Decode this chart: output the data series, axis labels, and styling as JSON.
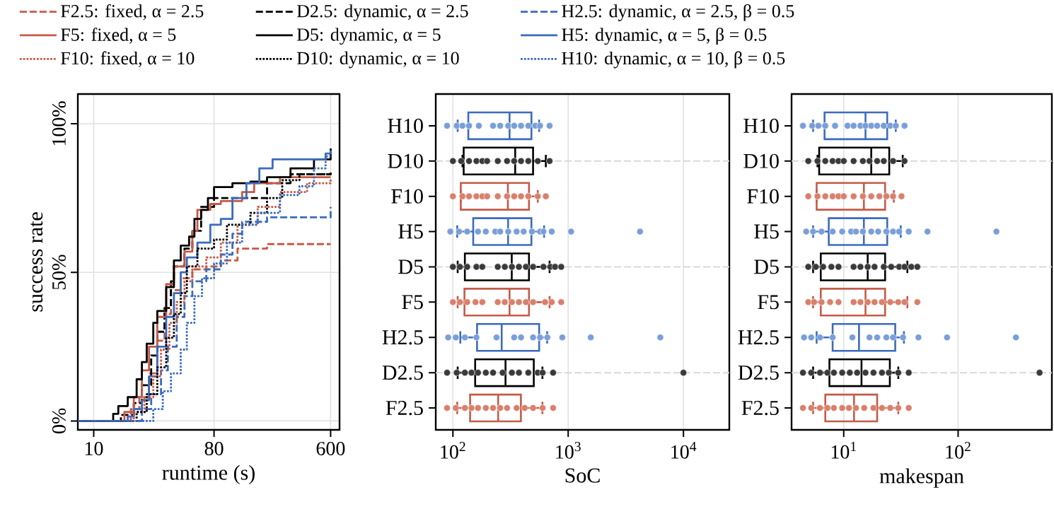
{
  "chart_data": [
    {
      "type": "step",
      "xlabel": "runtime (s)",
      "ylabel": "success rate",
      "log": "x",
      "xlim": [
        7.6,
        700
      ],
      "ylim": [
        -3,
        110
      ],
      "xticks": [
        10,
        80,
        600
      ],
      "yticks": [
        {
          "value": 0,
          "label": "0%"
        },
        {
          "value": 50,
          "label": "50%"
        },
        {
          "value": 100,
          "label": "100%"
        }
      ],
      "grid": true,
      "legend": "top",
      "series": [
        {
          "name": "F2.5: fixed, α = 2.5",
          "color": "#c55a47",
          "line_style": "dashed",
          "x": [
            7.6,
            17,
            19,
            22,
            26,
            30,
            34,
            38,
            45,
            55,
            70,
            90,
            120,
            200,
            600
          ],
          "values": [
            0,
            0,
            4,
            8,
            16,
            27,
            36,
            44,
            48,
            51,
            52,
            54,
            58,
            59.5,
            59.5
          ]
        },
        {
          "name": "D2.5: dynamic, α = 2.5",
          "color": "#000000",
          "line_style": "dashed",
          "x": [
            7.6,
            15,
            16,
            20,
            23,
            27,
            30,
            34,
            38,
            40,
            48,
            55,
            64,
            80,
            120,
            200,
            300,
            600
          ],
          "values": [
            0,
            0,
            2,
            6,
            12,
            22,
            30,
            38,
            47,
            52,
            58,
            64,
            72,
            75,
            75,
            80,
            83,
            83.5
          ]
        },
        {
          "name": "H2.5: dynamic, α = 2.5, β = 0.5",
          "color": "#3b6bbd",
          "line_style": "dashed",
          "x": [
            7.6,
            20,
            23,
            27,
            32,
            36,
            42,
            48,
            55,
            70,
            90,
            110,
            130,
            200,
            550,
            600
          ],
          "values": [
            0,
            0,
            4,
            9,
            17,
            25,
            35,
            42,
            47,
            51,
            56,
            63,
            67,
            68.5,
            68.5,
            72
          ]
        },
        {
          "name": "F5: fixed, α = 5",
          "color": "#c55a47",
          "line_style": "solid",
          "x": [
            7.6,
            15,
            17,
            20,
            23,
            26,
            30,
            35,
            40,
            48,
            55,
            60,
            75,
            90,
            130,
            160,
            250,
            600
          ],
          "values": [
            0,
            0,
            3,
            8,
            17,
            25,
            35,
            46,
            52,
            57,
            64,
            71,
            73,
            74,
            77,
            80,
            82,
            82
          ]
        },
        {
          "name": "D5: dynamic, α = 5",
          "color": "#000000",
          "line_style": "solid",
          "x": [
            7.6,
            12.5,
            14,
            15.3,
            18,
            21,
            23,
            25,
            28,
            30,
            35,
            40,
            45,
            52,
            57,
            64,
            72,
            80,
            110,
            150,
            200,
            300,
            450,
            600
          ],
          "values": [
            0,
            0,
            2.4,
            5,
            8,
            14,
            19.8,
            26,
            33,
            37,
            45,
            54,
            59,
            62,
            68,
            71,
            75,
            78.7,
            80,
            80.5,
            82,
            85,
            88,
            91.7
          ]
        },
        {
          "name": "H5: dynamic, α = 5, β = 0.5",
          "color": "#3b6bbd",
          "line_style": "solid",
          "x": [
            7.6,
            15,
            18,
            20,
            23,
            26,
            30,
            35,
            40,
            45,
            50,
            60,
            75,
            90,
            110,
            140,
            175,
            220,
            400,
            550,
            600
          ],
          "values": [
            0,
            0,
            1.5,
            4,
            7,
            15,
            25,
            35,
            43,
            50,
            55,
            60,
            66,
            68,
            75,
            80,
            85,
            88,
            88,
            90,
            91
          ]
        },
        {
          "name": "F10: fixed, α = 10",
          "color": "#c55a47",
          "line_style": "dotted",
          "x": [
            7.6,
            18,
            20,
            24,
            28,
            32,
            37,
            42,
            48,
            55,
            70,
            90,
            120,
            170,
            250,
            400,
            600
          ],
          "values": [
            0,
            0,
            3,
            8,
            15,
            24,
            33,
            40,
            47,
            52,
            55,
            60,
            66,
            72,
            77,
            80,
            81.5
          ]
        },
        {
          "name": "D10: dynamic, α = 10",
          "color": "#000000",
          "line_style": "dotted",
          "x": [
            7.6,
            19,
            21,
            25,
            30,
            35,
            40,
            45,
            50,
            60,
            80,
            100,
            150,
            200,
            260,
            350,
            600
          ],
          "values": [
            0,
            0,
            3,
            9,
            18,
            28,
            36,
            43,
            52,
            58,
            61,
            66,
            70,
            75,
            81,
            83,
            84
          ]
        },
        {
          "name": "H10: dynamic, α = 10, β = 0.5",
          "color": "#3b6bbd",
          "line_style": "dotted",
          "x": [
            7.6,
            25,
            28,
            33,
            38,
            45,
            50,
            57,
            65,
            80,
            100,
            130,
            170,
            250,
            350,
            450,
            550,
            600
          ],
          "values": [
            0,
            0,
            4,
            10,
            16,
            24,
            33,
            42,
            48,
            53,
            60,
            66,
            70,
            76,
            79,
            85,
            89,
            89
          ]
        }
      ]
    },
    {
      "type": "box",
      "orientation": "horizontal",
      "xlabel": "SoC",
      "log": "x",
      "xlim": [
        71,
        25000
      ],
      "xticks": [
        {
          "value": 100,
          "label": "10$^{2}$"
        },
        {
          "value": 1000,
          "label": "10$^{3}$"
        },
        {
          "value": 10000,
          "label": "10$^{4}$"
        }
      ],
      "grid": "x",
      "marker": "circle",
      "categories": [
        "H10",
        "D10",
        "F10",
        "H5",
        "D5",
        "F5",
        "H2.5",
        "D2.5",
        "F2.5"
      ],
      "colors": [
        "#3b6bbd",
        "#000000",
        "#c55a47",
        "#3b6bbd",
        "#000000",
        "#c55a47",
        "#3b6bbd",
        "#000000",
        "#c55a47"
      ],
      "boxes": [
        {
          "low": 110,
          "q1": 136,
          "median": 310,
          "q3": 480,
          "high": 560
        },
        {
          "low": 121,
          "q1": 124,
          "median": 347,
          "q3": 496,
          "high": 640
        },
        {
          "low": 117,
          "q1": 117,
          "median": 300,
          "q3": 457,
          "high": 545
        },
        {
          "low": 109,
          "q1": 150,
          "median": 301,
          "q3": 480,
          "high": 618
        },
        {
          "low": 110,
          "q1": 127,
          "median": 324,
          "q3": 457,
          "high": 690
        },
        {
          "low": 110,
          "q1": 126,
          "median": 310,
          "q3": 457,
          "high": 690
        },
        {
          "low": 116,
          "q1": 162,
          "median": 265,
          "q3": 560,
          "high": 657
        },
        {
          "low": 110,
          "q1": 156,
          "median": 286,
          "q3": 503,
          "high": 598
        },
        {
          "low": 109,
          "q1": 141,
          "median": 247,
          "q3": 389,
          "high": 598
        }
      ],
      "ref_lines": [
        {
          "axis": "y",
          "value": "D10",
          "color": "#d9d9d9",
          "line_style": "dashed"
        },
        {
          "axis": "y",
          "value": "D5",
          "color": "#d9d9d9",
          "line_style": "dashed"
        },
        {
          "axis": "y",
          "value": "D2.5",
          "color": "#d9d9d9",
          "line_style": "dashed"
        }
      ],
      "series": [
        {
          "type": "scatter",
          "color": "#7a9fd8",
          "x": [
            "H10",
            "H10",
            "H10",
            "H10",
            "H10",
            "H10",
            "H10",
            "H10",
            "H10",
            "H10",
            "H10",
            "H10",
            "H10",
            "H10"
          ],
          "values": [
            89,
            108,
            121,
            138,
            168,
            223,
            257,
            302,
            340,
            390,
            451,
            520,
            570,
            690
          ]
        },
        {
          "type": "scatter",
          "color": "#3a3a3a",
          "x": [
            "D10",
            "D10",
            "D10",
            "D10",
            "D10",
            "D10",
            "D10",
            "D10",
            "D10",
            "D10",
            "D10",
            "D10",
            "D10"
          ],
          "values": [
            100,
            118,
            138,
            160,
            180,
            198,
            245,
            295,
            340,
            390,
            451,
            545,
            690
          ]
        },
        {
          "type": "scatter",
          "color": "#d9806c",
          "x": [
            "F10",
            "F10",
            "F10",
            "F10",
            "F10",
            "F10",
            "F10",
            "F10",
            "F10",
            "F10",
            "F10",
            "F10",
            "F10"
          ],
          "values": [
            100,
            121,
            138,
            160,
            180,
            198,
            245,
            295,
            340,
            390,
            451,
            545,
            640
          ]
        },
        {
          "type": "scatter",
          "color": "#7a9fd8",
          "x": [
            "H5",
            "H5",
            "H5",
            "H5",
            "H5",
            "H5",
            "H5",
            "H5",
            "H5",
            "H5",
            "H5",
            "H5",
            "H5",
            "H5",
            "H5",
            "H5"
          ],
          "values": [
            95,
            113,
            133,
            165,
            193,
            233,
            257,
            302,
            357,
            411,
            485,
            570,
            610,
            720,
            1060,
            4200
          ]
        },
        {
          "type": "scatter",
          "color": "#3a3a3a",
          "x": [
            "D5",
            "D5",
            "D5",
            "D5",
            "D5",
            "D5",
            "D5",
            "D5",
            "D5",
            "D5",
            "D5",
            "D5",
            "D5",
            "D5",
            "D5"
          ],
          "values": [
            100,
            115,
            133,
            160,
            180,
            245,
            282,
            325,
            374,
            430,
            496,
            610,
            700,
            770,
            870
          ]
        },
        {
          "type": "scatter",
          "color": "#d9806c",
          "x": [
            "F5",
            "F5",
            "F5",
            "F5",
            "F5",
            "F5",
            "F5",
            "F5",
            "F5",
            "F5",
            "F5",
            "F5",
            "F5",
            "F5"
          ],
          "values": [
            100,
            115,
            133,
            157,
            180,
            245,
            282,
            325,
            374,
            430,
            496,
            630,
            720,
            870
          ]
        },
        {
          "type": "scatter",
          "color": "#7a9fd8",
          "x": [
            "H2.5",
            "H2.5",
            "H2.5",
            "H2.5",
            "H2.5",
            "H2.5",
            "H2.5",
            "H2.5",
            "H2.5",
            "H2.5",
            "H2.5",
            "H2.5",
            "H2.5"
          ],
          "values": [
            91,
            106,
            127,
            160,
            239,
            340,
            390,
            496,
            570,
            660,
            890,
            1570,
            6300
          ]
        },
        {
          "type": "scatter",
          "color": "#3a3a3a",
          "x": [
            "D2.5",
            "D2.5",
            "D2.5",
            "D2.5",
            "D2.5",
            "D2.5",
            "D2.5",
            "D2.5",
            "D2.5",
            "D2.5",
            "D2.5",
            "D2.5",
            "D2.5",
            "D2.5",
            "D2.5"
          ],
          "values": [
            89,
            108,
            127,
            145,
            165,
            193,
            223,
            270,
            325,
            374,
            451,
            545,
            600,
            740,
            10000
          ]
        },
        {
          "type": "scatter",
          "color": "#d9806c",
          "x": [
            "F2.5",
            "F2.5",
            "F2.5",
            "F2.5",
            "F2.5",
            "F2.5",
            "F2.5",
            "F2.5",
            "F2.5",
            "F2.5",
            "F2.5",
            "F2.5",
            "F2.5",
            "F2.5"
          ],
          "values": [
            89,
            106,
            127,
            145,
            165,
            193,
            223,
            257,
            295,
            357,
            420,
            496,
            600,
            740
          ]
        }
      ]
    },
    {
      "type": "box",
      "orientation": "horizontal",
      "xlabel": "makespan",
      "log": "x",
      "xlim": [
        3.5,
        660
      ],
      "xticks": [
        {
          "value": 10,
          "label": "10$^{1}$"
        },
        {
          "value": 100,
          "label": "10$^{2}$"
        }
      ],
      "grid": "x",
      "marker": "circle",
      "categories": [
        "H10",
        "D10",
        "F10",
        "H5",
        "D5",
        "F5",
        "H2.5",
        "D2.5",
        "F2.5"
      ],
      "colors": [
        "#3b6bbd",
        "#000000",
        "#c55a47",
        "#3b6bbd",
        "#000000",
        "#c55a47",
        "#3b6bbd",
        "#000000",
        "#c55a47"
      ],
      "boxes": [
        {
          "low": 5.4,
          "q1": 6.8,
          "median": 15.5,
          "q3": 24,
          "high": 28.5
        },
        {
          "low": 5.9,
          "q1": 6.1,
          "median": 17.4,
          "q3": 25,
          "high": 32.8
        },
        {
          "low": 5.8,
          "q1": 5.8,
          "median": 15,
          "q3": 23,
          "high": 27.4
        },
        {
          "low": 5.4,
          "q1": 7.4,
          "median": 15,
          "q3": 24,
          "high": 31.5
        },
        {
          "low": 5.4,
          "q1": 6.3,
          "median": 16.2,
          "q3": 23,
          "high": 36
        },
        {
          "low": 5.4,
          "q1": 6.3,
          "median": 15.5,
          "q3": 23,
          "high": 36
        },
        {
          "low": 5.8,
          "q1": 8,
          "median": 13.6,
          "q3": 28.2,
          "high": 33.6
        },
        {
          "low": 5.4,
          "q1": 7.5,
          "median": 14.3,
          "q3": 25.3,
          "high": 30
        },
        {
          "low": 5.4,
          "q1": 6.9,
          "median": 12.3,
          "q3": 19.6,
          "high": 30
        }
      ],
      "ref_lines": [
        {
          "axis": "y",
          "value": "D10",
          "color": "#d9d9d9",
          "line_style": "dashed"
        },
        {
          "axis": "y",
          "value": "D5",
          "color": "#d9d9d9",
          "line_style": "dashed"
        },
        {
          "axis": "y",
          "value": "D2.5",
          "color": "#d9d9d9",
          "line_style": "dashed"
        }
      ],
      "series": [
        {
          "type": "scatter",
          "color": "#7a9fd8",
          "x": [
            "H10",
            "H10",
            "H10",
            "H10",
            "H10",
            "H10",
            "H10",
            "H10",
            "H10",
            "H10",
            "H10",
            "H10",
            "H10",
            "H10",
            "H10"
          ],
          "values": [
            4.4,
            5.3,
            6,
            6.9,
            8.4,
            10.8,
            12.2,
            14,
            15.5,
            17.4,
            19.6,
            22.4,
            25.5,
            28.5,
            34
          ]
        },
        {
          "type": "scatter",
          "color": "#3a3a3a",
          "x": [
            "D10",
            "D10",
            "D10",
            "D10",
            "D10",
            "D10",
            "D10",
            "D10",
            "D10",
            "D10",
            "D10",
            "D10",
            "D10"
          ],
          "values": [
            4.9,
            5.9,
            6.9,
            8,
            9,
            10,
            12.2,
            14.7,
            16.8,
            19.6,
            22.4,
            27,
            34
          ]
        },
        {
          "type": "scatter",
          "color": "#d9806c",
          "x": [
            "F10",
            "F10",
            "F10",
            "F10",
            "F10",
            "F10",
            "F10",
            "F10",
            "F10",
            "F10",
            "F10",
            "F10",
            "F10"
          ],
          "values": [
            4.9,
            5.9,
            6.9,
            8,
            9,
            10,
            12.2,
            14.7,
            17.4,
            20.5,
            23.6,
            27,
            32
          ]
        },
        {
          "type": "scatter",
          "color": "#7a9fd8",
          "x": [
            "H5",
            "H5",
            "H5",
            "H5",
            "H5",
            "H5",
            "H5",
            "H5",
            "H5",
            "H5",
            "H5",
            "H5",
            "H5",
            "H5",
            "H5",
            "H5"
          ],
          "values": [
            4.7,
            5.4,
            6.4,
            8,
            9.7,
            11.6,
            12.8,
            14.7,
            17.4,
            20,
            23.6,
            27,
            30.5,
            37,
            54,
            216
          ]
        },
        {
          "type": "scatter",
          "color": "#3a3a3a",
          "x": [
            "D5",
            "D5",
            "D5",
            "D5",
            "D5",
            "D5",
            "D5",
            "D5",
            "D5",
            "D5",
            "D5",
            "D5",
            "D5",
            "D5",
            "D5"
          ],
          "values": [
            4.9,
            5.7,
            6.6,
            7.8,
            9,
            12.2,
            14,
            16.2,
            18.6,
            22.4,
            26,
            30.5,
            34,
            39,
            44
          ]
        },
        {
          "type": "scatter",
          "color": "#d9806c",
          "x": [
            "F5",
            "F5",
            "F5",
            "F5",
            "F5",
            "F5",
            "F5",
            "F5",
            "F5",
            "F5",
            "F5",
            "F5",
            "F5",
            "F5"
          ],
          "values": [
            4.9,
            5.5,
            6.4,
            7.6,
            9,
            12.2,
            14,
            16.2,
            18.6,
            21.6,
            25.5,
            30,
            34,
            44
          ]
        },
        {
          "type": "scatter",
          "color": "#7a9fd8",
          "x": [
            "H2.5",
            "H2.5",
            "H2.5",
            "H2.5",
            "H2.5",
            "H2.5",
            "H2.5",
            "H2.5",
            "H2.5",
            "H2.5",
            "H2.5",
            "H2.5",
            "H2.5"
          ],
          "values": [
            4.5,
            5.2,
            6.2,
            8,
            11.9,
            16.8,
            19.6,
            23.6,
            27,
            33,
            45,
            80,
            320
          ]
        },
        {
          "type": "scatter",
          "color": "#3a3a3a",
          "x": [
            "D2.5",
            "D2.5",
            "D2.5",
            "D2.5",
            "D2.5",
            "D2.5",
            "D2.5",
            "D2.5",
            "D2.5",
            "D2.5",
            "D2.5",
            "D2.5",
            "D2.5",
            "D2.5",
            "D2.5"
          ],
          "values": [
            4.4,
            5.2,
            6.2,
            7.2,
            8.2,
            9.7,
            11.3,
            13.1,
            15.5,
            18.2,
            21.6,
            24.8,
            30,
            37,
            515
          ]
        },
        {
          "type": "scatter",
          "color": "#d9806c",
          "x": [
            "F2.5",
            "F2.5",
            "F2.5",
            "F2.5",
            "F2.5",
            "F2.5",
            "F2.5",
            "F2.5",
            "F2.5",
            "F2.5",
            "F2.5",
            "F2.5",
            "F2.5",
            "F2.5"
          ],
          "values": [
            4.4,
            5.2,
            6.2,
            7.2,
            8.2,
            9.7,
            11.1,
            12.8,
            15.1,
            18.2,
            21.6,
            25.5,
            30,
            37
          ]
        }
      ]
    }
  ]
}
